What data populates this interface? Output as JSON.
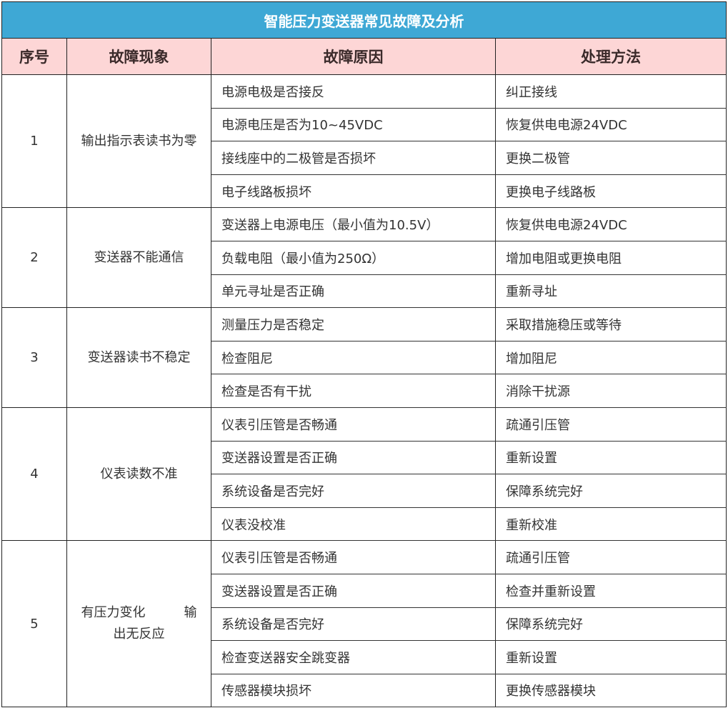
{
  "title": "智能压力变送器常见故障及分析",
  "headers": {
    "no": "序号",
    "symptom": "故障现象",
    "cause": "故障原因",
    "fix": "处理方法"
  },
  "groups": [
    {
      "no": "1",
      "symptom": "输出指示表读书为零",
      "rows": [
        {
          "cause": "电源电极是否接反",
          "fix": "纠正接线"
        },
        {
          "cause": "电源电压是否为10~45VDC",
          "fix": "恢复供电电源24VDC"
        },
        {
          "cause": "接线座中的二极管是否损坏",
          "fix": "更换二极管"
        },
        {
          "cause": "电子线路板损坏",
          "fix": "更换电子线路板"
        }
      ]
    },
    {
      "no": "2",
      "symptom": "变送器不能通信",
      "rows": [
        {
          "cause": "变送器上电源电压（最小值为10.5V）",
          "fix": "恢复供电电源24VDC"
        },
        {
          "cause": "负载电阻（最小值为250Ω）",
          "fix": "增加电阻或更换电阻"
        },
        {
          "cause": "单元寻址是否正确",
          "fix": "重新寻址"
        }
      ]
    },
    {
      "no": "3",
      "symptom": "变送器读书不稳定",
      "rows": [
        {
          "cause": "测量压力是否稳定",
          "fix": "采取措施稳压或等待"
        },
        {
          "cause": "检查阻尼",
          "fix": "增加阻尼"
        },
        {
          "cause": "检查是否有干扰",
          "fix": "消除干扰源"
        }
      ]
    },
    {
      "no": "4",
      "symptom": "仪表读数不准",
      "rows": [
        {
          "cause": "仪表引压管是否畅通",
          "fix": "疏通引压管"
        },
        {
          "cause": "变送器设置是否正确",
          "fix": "重新设置"
        },
        {
          "cause": "系统设备是否完好",
          "fix": "保障系统完好"
        },
        {
          "cause": "仪表没校准",
          "fix": "重新校准"
        }
      ]
    },
    {
      "no": "5",
      "symptom": "有压力变化　　　输出无反应",
      "rows": [
        {
          "cause": "仪表引压管是否畅通",
          "fix": "疏通引压管"
        },
        {
          "cause": "变送器设置是否正确",
          "fix": "检查并重新设置"
        },
        {
          "cause": "系统设备是否完好",
          "fix": "保障系统完好"
        },
        {
          "cause": "检查变送器安全跳变器",
          "fix": "重新设置"
        },
        {
          "cause": "传感器模块损坏",
          "fix": "更换传感器模块"
        }
      ]
    }
  ]
}
